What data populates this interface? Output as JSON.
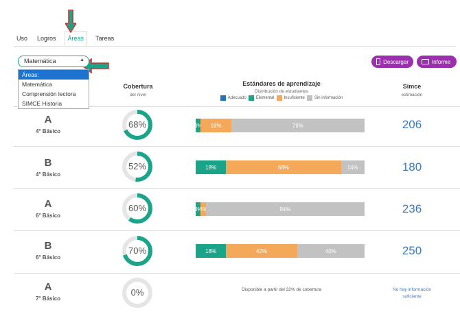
{
  "tabs": [
    {
      "label": "Uso"
    },
    {
      "label": "Logros"
    },
    {
      "label": "Áreas"
    },
    {
      "label": "Tareas"
    }
  ],
  "area_select": {
    "value": "Matemática",
    "options": [
      "Áreas:",
      "Matemática",
      "Comprensión lectora",
      "SIMCE Historia"
    ]
  },
  "buttons": {
    "descargar": "Descargar",
    "informe": "Informe"
  },
  "headers": {
    "cobertura": "Cobertura",
    "cobertura_sub": "del nivel",
    "estandares": "Estándares de aprendizaje",
    "estandares_sub": "Distribución de estudiantes",
    "simce": "Simce",
    "simce_sub": "estimación"
  },
  "legend": {
    "adecuado": "Adecuado",
    "elemental": "Elemental",
    "insuficiente": "Insuficiente",
    "sin_info": "Sin información"
  },
  "colors": {
    "adecuado": "#1f78b4",
    "elemental": "#1aa58a",
    "insuficiente": "#f4a85a",
    "sin_info": "#c2c2c2",
    "accent": "#1aa58a",
    "button": "#9b2fae"
  },
  "rows": [
    {
      "letter": "A",
      "level": "4° Básico",
      "coverage": "68%",
      "coverage_value": 68,
      "segments": {
        "elemental": {
          "value": 3,
          "label": "3%"
        },
        "insuficiente": {
          "value": 18,
          "label": "18%"
        },
        "sin_info": {
          "value": 79,
          "label": "79%"
        }
      },
      "simce": "206"
    },
    {
      "letter": "B",
      "level": "4° Básico",
      "coverage": "52%",
      "coverage_value": 52,
      "segments": {
        "elemental": {
          "value": 18,
          "label": "18%"
        },
        "insuficiente": {
          "value": 68,
          "label": "68%"
        },
        "sin_info": {
          "value": 14,
          "label": "14%"
        }
      },
      "simce": "180"
    },
    {
      "letter": "A",
      "level": "6° Básico",
      "coverage": "60%",
      "coverage_value": 60,
      "segments": {
        "elemental": {
          "value": 3,
          "label": "3%"
        },
        "insuficiente": {
          "value": 3,
          "label": "3%"
        },
        "sin_info": {
          "value": 94,
          "label": "94%"
        }
      },
      "simce": "236"
    },
    {
      "letter": "B",
      "level": "6° Básico",
      "coverage": "70%",
      "coverage_value": 70,
      "segments": {
        "elemental": {
          "value": 18,
          "label": "18%"
        },
        "insuficiente": {
          "value": 42,
          "label": "42%"
        },
        "sin_info": {
          "value": 40,
          "label": "40%"
        }
      },
      "simce": "250"
    },
    {
      "letter": "A",
      "level": "7° Básico",
      "coverage": "0%",
      "coverage_value": 0,
      "note": "Disponible a partir del 32% de cobertura",
      "simce_note": "No hay información suficiente"
    }
  ]
}
